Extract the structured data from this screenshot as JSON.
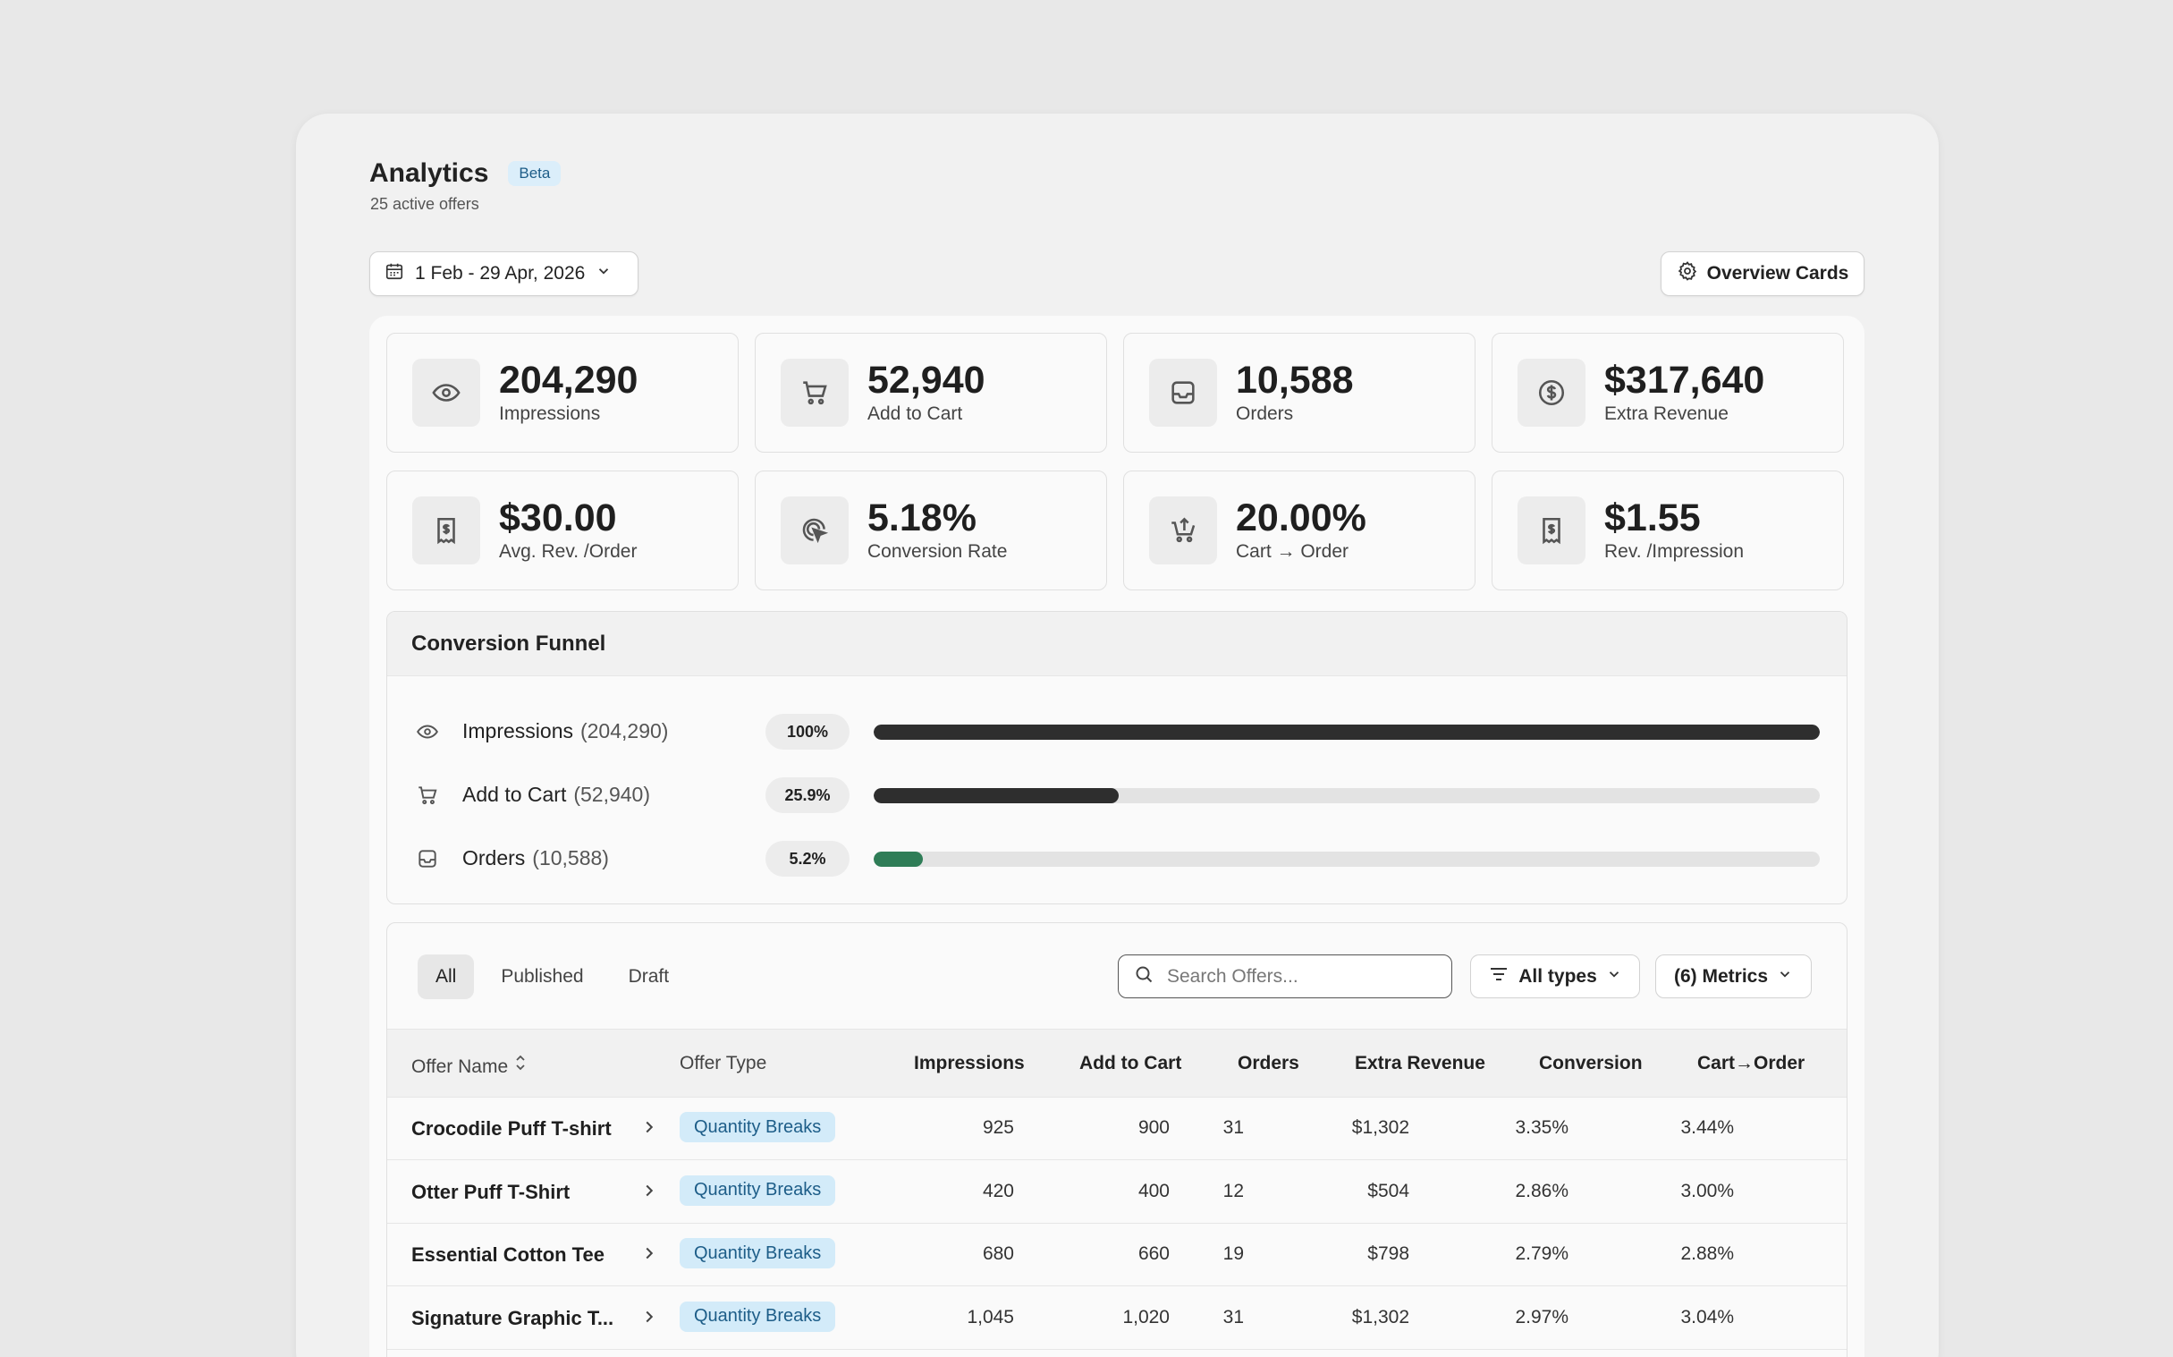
{
  "header": {
    "title": "Analytics",
    "beta": "Beta",
    "subtitle": "25 active offers"
  },
  "date_range": {
    "label": "1 Feb - 29 Apr, 2026"
  },
  "overview_button": {
    "label": "Overview Cards"
  },
  "cards": [
    {
      "value": "204,290",
      "label": "Impressions",
      "icon": "eye-icon"
    },
    {
      "value": "52,940",
      "label": "Add to Cart",
      "icon": "cart-icon"
    },
    {
      "value": "10,588",
      "label": "Orders",
      "icon": "inbox-icon"
    },
    {
      "value": "$317,640",
      "label": "Extra Revenue",
      "icon": "dollar-circle-icon"
    },
    {
      "value": "$30.00",
      "label": "Avg. Rev. /Order",
      "icon": "receipt-icon"
    },
    {
      "value": "5.18%",
      "label": "Conversion Rate",
      "icon": "target-cursor-icon"
    },
    {
      "value": "20.00%",
      "label": "Cart → Order",
      "icon": "cart-upload-icon"
    },
    {
      "value": "$1.55",
      "label": "Rev. /Impression",
      "icon": "receipt-icon"
    }
  ],
  "funnel": {
    "title": "Conversion Funnel",
    "rows": [
      {
        "name": "Impressions",
        "count": "(204,290)",
        "pct": "100%",
        "fraction": 1.0,
        "color": "#2e2e2e",
        "icon": "eye-icon"
      },
      {
        "name": "Add to Cart",
        "count": "(52,940)",
        "pct": "25.9%",
        "fraction": 0.259,
        "color": "#2e2e2e",
        "icon": "cart-icon"
      },
      {
        "name": "Orders",
        "count": "(10,588)",
        "pct": "5.2%",
        "fraction": 0.052,
        "color": "#2f7d57",
        "icon": "inbox-icon"
      }
    ]
  },
  "table": {
    "tabs": [
      "All",
      "Published",
      "Draft"
    ],
    "search_placeholder": "Search Offers...",
    "type_filter": "All types",
    "metrics_filter": "(6) Metrics",
    "columns": [
      "Offer Name",
      "Offer Type",
      "Impressions",
      "Add to Cart",
      "Orders",
      "Extra Revenue",
      "Conversion",
      "Cart→Order"
    ],
    "rows": [
      {
        "name": "Crocodile Puff T-shirt",
        "type": "Quantity Breaks",
        "impressions": "925",
        "add_to_cart": "900",
        "orders": "31",
        "revenue": "$1,302",
        "conversion": "3.35%",
        "cart_order": "3.44%"
      },
      {
        "name": "Otter Puff T-Shirt",
        "type": "Quantity Breaks",
        "impressions": "420",
        "add_to_cart": "400",
        "orders": "12",
        "revenue": "$504",
        "conversion": "2.86%",
        "cart_order": "3.00%"
      },
      {
        "name": "Essential Cotton Tee",
        "type": "Quantity Breaks",
        "impressions": "680",
        "add_to_cart": "660",
        "orders": "19",
        "revenue": "$798",
        "conversion": "2.79%",
        "cart_order": "2.88%"
      },
      {
        "name": "Signature Graphic T...",
        "type": "Quantity Breaks",
        "impressions": "1,045",
        "add_to_cart": "1,020",
        "orders": "31",
        "revenue": "$1,302",
        "conversion": "2.97%",
        "cart_order": "3.04%"
      }
    ]
  }
}
